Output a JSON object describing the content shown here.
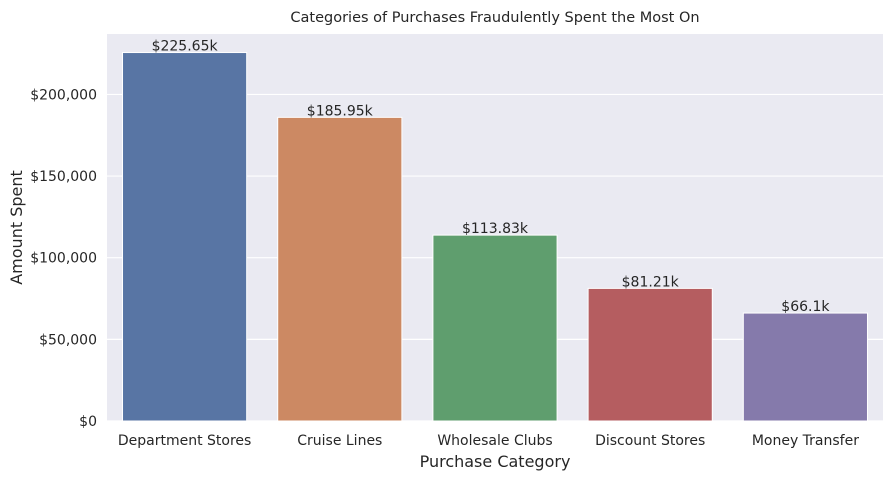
{
  "chart_data": {
    "type": "bar",
    "title": "Categories of Purchases Fraudulently Spent the Most On",
    "xlabel": "Purchase Category",
    "ylabel": "Amount Spent",
    "categories": [
      "Department Stores",
      "Cruise Lines",
      "Wholesale Clubs",
      "Discount Stores",
      "Money Transfer"
    ],
    "values": [
      225650,
      185950,
      113830,
      81210,
      66100
    ],
    "data_labels": [
      "$225.65k",
      "$185.95k",
      "$113.83k",
      "$81.21k",
      "$66.1k"
    ],
    "colors": [
      "#5875a4",
      "#cc8963",
      "#5f9e6e",
      "#b55d60",
      "#857aab"
    ],
    "ylim": [
      0,
      237000
    ],
    "yticks": [
      0,
      50000,
      100000,
      150000,
      200000
    ],
    "ytick_labels": [
      "$0",
      "$50,000",
      "$100,000",
      "$150,000",
      "$200,000"
    ],
    "grid": true,
    "background": "#eaeaf2"
  }
}
